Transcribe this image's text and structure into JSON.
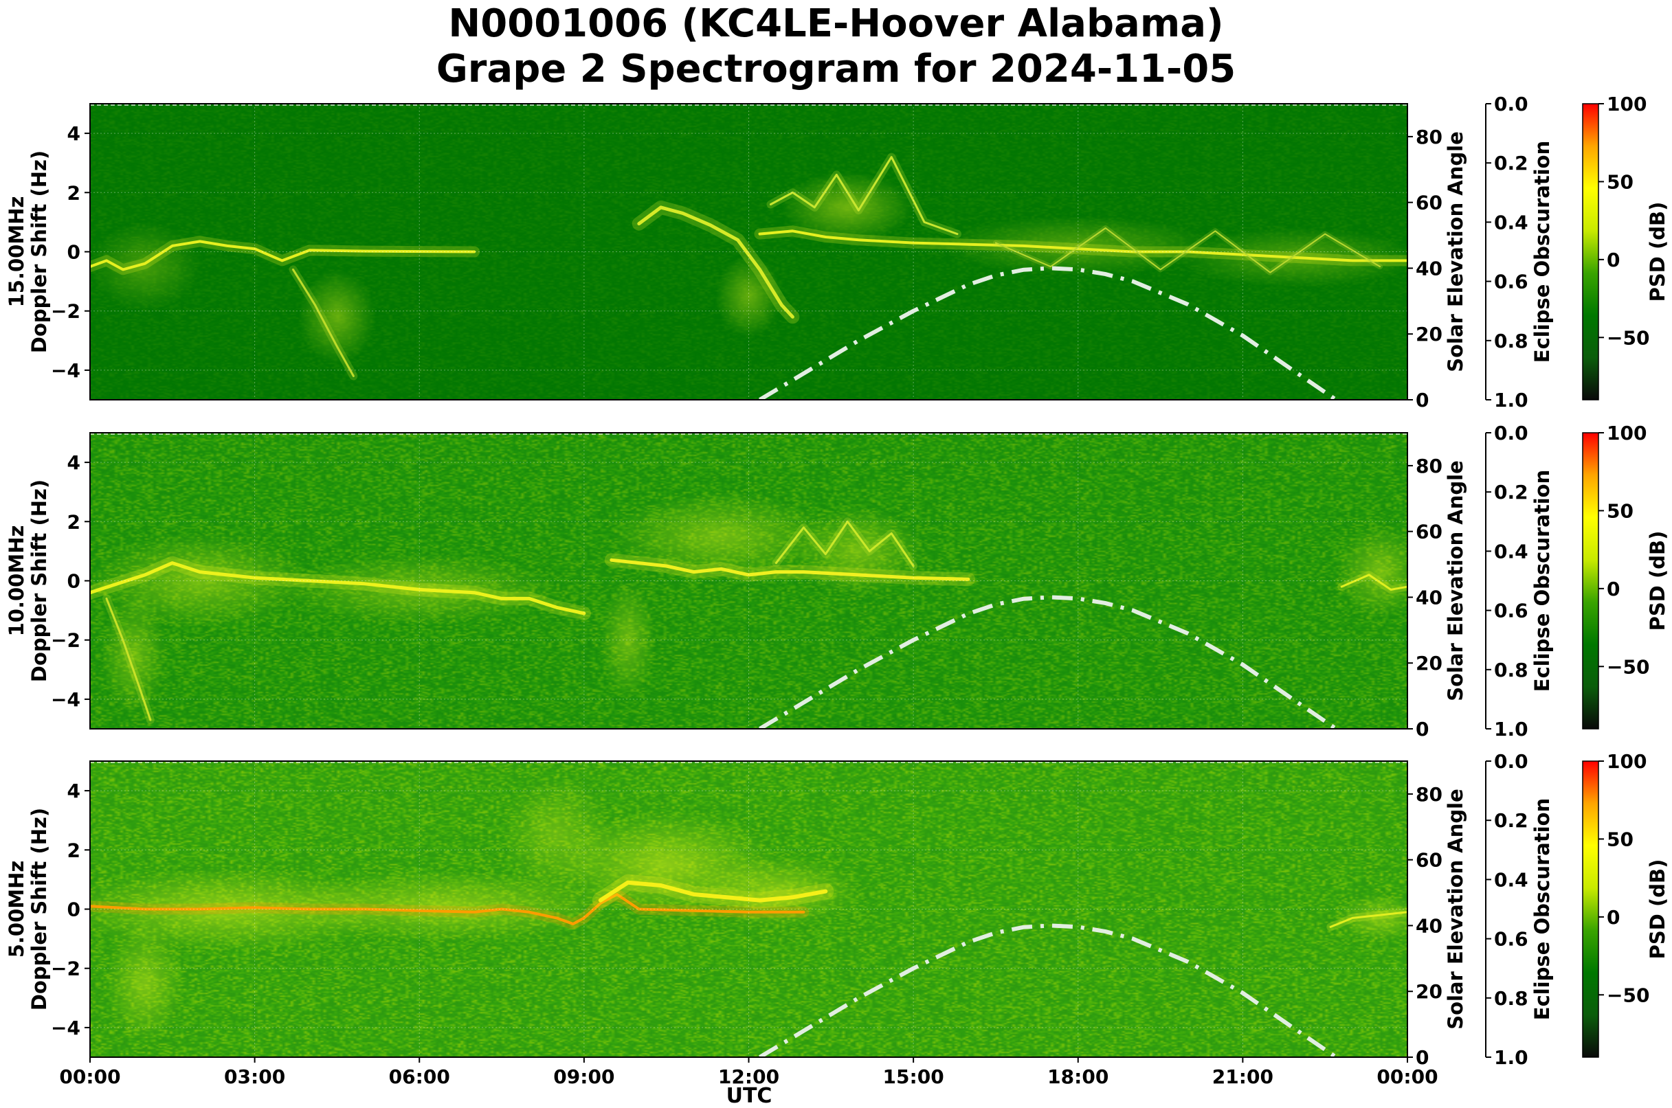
{
  "figure": {
    "title_line1": "N0001006 (KC4LE-Hoover Alabama)",
    "title_line2": "Grape 2 Spectrogram for 2024-11-05",
    "xlabel": "UTC"
  },
  "chart_data": {
    "type": "heatmap",
    "x_ticks": [
      "00:00",
      "03:00",
      "06:00",
      "09:00",
      "12:00",
      "15:00",
      "18:00",
      "21:00",
      "00:00"
    ],
    "xlim_hours": [
      0,
      24
    ],
    "ylabel_suffix": "Doppler Shift (Hz)",
    "ylim": [
      -5,
      5
    ],
    "y_ticks": [
      4,
      2,
      0,
      -2,
      -4
    ],
    "y_tick_labels": [
      "4",
      "2",
      "0",
      "−2",
      "−4"
    ],
    "right_axis_label": "Solar Elevation Angle",
    "right_ylim": [
      0,
      90
    ],
    "right_ticks": [
      0,
      20,
      40,
      60,
      80
    ],
    "eclipse_label": "Eclipse Obscuration",
    "eclipse_ylim": [
      1.0,
      0.0
    ],
    "eclipse_ticks": [
      "0.0",
      "0.2",
      "0.4",
      "0.6",
      "0.8",
      "1.0"
    ],
    "colorbar_label": "PSD (dB)",
    "colorbar_ticks": [
      "100",
      "50",
      "0",
      "−50"
    ],
    "colorbar_range": [
      -90,
      100
    ],
    "colormap": [
      "#0a0a0a",
      "#0b5d0b",
      "#007800",
      "#3aa400",
      "#c8ea00",
      "#ffff00",
      "#ffa500",
      "#ff0000"
    ],
    "solar_elevation_curve": {
      "style": "dash-dot",
      "color": "#e2eee2",
      "points": [
        [
          12.2,
          0
        ],
        [
          13.0,
          8
        ],
        [
          14.0,
          18
        ],
        [
          15.0,
          27
        ],
        [
          16.0,
          35
        ],
        [
          16.5,
          37.8
        ],
        [
          17.0,
          39.5
        ],
        [
          17.5,
          40
        ],
        [
          18.0,
          39.6
        ],
        [
          18.5,
          38.2
        ],
        [
          19.0,
          36
        ],
        [
          20.0,
          29
        ],
        [
          21.0,
          19.5
        ],
        [
          22.0,
          8
        ],
        [
          22.7,
          0
        ]
      ]
    },
    "panels": [
      {
        "frequency": "15.00MHz",
        "background": "#037603",
        "noise": 0.1,
        "traces": [
          {
            "color": "#e6f020",
            "width": 4,
            "points": [
              [
                0,
                -0.5
              ],
              [
                0.3,
                -0.3
              ],
              [
                0.6,
                -0.6
              ],
              [
                1,
                -0.4
              ],
              [
                1.5,
                0.2
              ],
              [
                2,
                0.35
              ],
              [
                2.5,
                0.2
              ],
              [
                3,
                0.1
              ],
              [
                3.5,
                -0.3
              ],
              [
                4,
                0.05
              ],
              [
                5,
                0.02
              ],
              [
                7,
                0
              ]
            ]
          },
          {
            "color": "#d6ea28",
            "width": 5,
            "points": [
              [
                10,
                0.95
              ],
              [
                10.4,
                1.5
              ],
              [
                10.8,
                1.3
              ],
              [
                11.3,
                0.9
              ],
              [
                11.8,
                0.4
              ],
              [
                12.2,
                -0.6
              ],
              [
                12.6,
                -1.8
              ],
              [
                12.8,
                -2.2
              ]
            ]
          },
          {
            "color": "#e6f020",
            "width": 4,
            "points": [
              [
                12.2,
                0.6
              ],
              [
                12.8,
                0.7
              ],
              [
                13.4,
                0.5
              ],
              [
                14,
                0.4
              ],
              [
                15,
                0.3
              ],
              [
                16,
                0.25
              ],
              [
                17,
                0.2
              ],
              [
                18,
                0.1
              ],
              [
                19,
                0.0
              ],
              [
                20,
                0.0
              ],
              [
                21,
                -0.1
              ],
              [
                22,
                -0.2
              ],
              [
                23,
                -0.3
              ],
              [
                24,
                -0.3
              ]
            ]
          },
          {
            "color": "#c8e630",
            "width": 3,
            "points": [
              [
                12.4,
                1.6
              ],
              [
                12.8,
                2.0
              ],
              [
                13.2,
                1.5
              ],
              [
                13.6,
                2.6
              ],
              [
                14.0,
                1.4
              ],
              [
                14.6,
                3.2
              ],
              [
                15.2,
                1.0
              ],
              [
                15.8,
                0.6
              ]
            ]
          },
          {
            "color": "#bddc2a",
            "width": 3,
            "points": [
              [
                3.7,
                -0.6
              ],
              [
                4.1,
                -1.8
              ],
              [
                4.5,
                -3.2
              ],
              [
                4.8,
                -4.2
              ]
            ]
          },
          {
            "color": "#b8d830",
            "width": 2,
            "points": [
              [
                16.5,
                0.3
              ],
              [
                17.5,
                -0.5
              ],
              [
                18.5,
                0.8
              ],
              [
                19.5,
                -0.6
              ],
              [
                20.5,
                0.7
              ],
              [
                21.5,
                -0.7
              ],
              [
                22.5,
                0.6
              ],
              [
                23.5,
                -0.5
              ]
            ]
          }
        ],
        "glows": [
          {
            "h": 4.5,
            "f": -2.2,
            "rh": 0.7,
            "rf": 1.6,
            "intensity": 0.45
          },
          {
            "h": 12.0,
            "f": -1.5,
            "rh": 0.6,
            "rf": 1.4,
            "intensity": 0.45
          },
          {
            "h": 13.8,
            "f": 1.5,
            "rh": 1.2,
            "rf": 1.2,
            "intensity": 0.5
          },
          {
            "h": 18.0,
            "f": 0.2,
            "rh": 2.5,
            "rf": 1.0,
            "intensity": 0.35
          },
          {
            "h": 22.0,
            "f": -0.2,
            "rh": 2.2,
            "rf": 1.0,
            "intensity": 0.35
          },
          {
            "h": 1.0,
            "f": -0.5,
            "rh": 1.0,
            "rf": 1.5,
            "intensity": 0.3
          }
        ]
      },
      {
        "frequency": "10.00MHz",
        "background": "#1a8d0c",
        "noise": 0.4,
        "traces": [
          {
            "color": "#ecf21c",
            "width": 5,
            "points": [
              [
                0,
                -0.4
              ],
              [
                0.5,
                -0.1
              ],
              [
                1,
                0.2
              ],
              [
                1.5,
                0.6
              ],
              [
                2,
                0.3
              ],
              [
                2.5,
                0.2
              ],
              [
                3,
                0.1
              ],
              [
                4,
                0.0
              ],
              [
                5,
                -0.1
              ],
              [
                6,
                -0.3
              ],
              [
                7,
                -0.4
              ],
              [
                7.5,
                -0.6
              ],
              [
                8,
                -0.6
              ],
              [
                8.5,
                -0.9
              ],
              [
                9,
                -1.1
              ]
            ]
          },
          {
            "color": "#f0f020",
            "width": 5,
            "points": [
              [
                9.5,
                0.7
              ],
              [
                10,
                0.6
              ],
              [
                10.5,
                0.5
              ],
              [
                11,
                0.3
              ],
              [
                11.5,
                0.4
              ],
              [
                12,
                0.2
              ],
              [
                12.5,
                0.3
              ],
              [
                13,
                0.3
              ],
              [
                14,
                0.2
              ],
              [
                15,
                0.1
              ],
              [
                16,
                0.05
              ]
            ]
          },
          {
            "color": "#cbe82a",
            "width": 3,
            "points": [
              [
                12.5,
                0.6
              ],
              [
                13,
                1.8
              ],
              [
                13.4,
                0.9
              ],
              [
                13.8,
                2.0
              ],
              [
                14.2,
                1.0
              ],
              [
                14.6,
                1.6
              ],
              [
                15,
                0.5
              ]
            ]
          },
          {
            "color": "#c8e228",
            "width": 3,
            "points": [
              [
                0.3,
                -0.6
              ],
              [
                0.6,
                -2.0
              ],
              [
                0.9,
                -3.6
              ],
              [
                1.1,
                -4.7
              ]
            ]
          },
          {
            "color": "#e0ef20",
            "width": 3,
            "points": [
              [
                22.8,
                -0.2
              ],
              [
                23.3,
                0.2
              ],
              [
                23.7,
                -0.3
              ],
              [
                24,
                -0.2
              ]
            ]
          }
        ],
        "glows": [
          {
            "h": 2.0,
            "f": 0.0,
            "rh": 2.0,
            "rf": 1.6,
            "intensity": 0.45
          },
          {
            "h": 6.0,
            "f": -0.3,
            "rh": 2.5,
            "rf": 1.2,
            "intensity": 0.4
          },
          {
            "h": 0.8,
            "f": -2.5,
            "rh": 0.6,
            "rf": 2.0,
            "intensity": 0.4
          },
          {
            "h": 9.8,
            "f": -2.0,
            "rh": 0.5,
            "rf": 2.0,
            "intensity": 0.4
          },
          {
            "h": 11.5,
            "f": 1.5,
            "rh": 2.0,
            "rf": 1.5,
            "intensity": 0.45
          },
          {
            "h": 14.0,
            "f": 1.0,
            "rh": 1.2,
            "rf": 1.5,
            "intensity": 0.45
          },
          {
            "h": 23.5,
            "f": 0.3,
            "rh": 0.8,
            "rf": 1.6,
            "intensity": 0.45
          }
        ]
      },
      {
        "frequency": "5.00MHz",
        "background": "#2e9a10",
        "noise": 0.5,
        "traces": [
          {
            "color": "#ff9e00",
            "width": 4,
            "points": [
              [
                0,
                0.1
              ],
              [
                1,
                0.0
              ],
              [
                2,
                0.0
              ],
              [
                3,
                0.05
              ],
              [
                4,
                0.0
              ],
              [
                5,
                0.0
              ],
              [
                6,
                -0.05
              ],
              [
                7,
                -0.1
              ],
              [
                7.5,
                0.0
              ],
              [
                8,
                -0.1
              ],
              [
                8.5,
                -0.3
              ],
              [
                8.8,
                -0.5
              ],
              [
                9.0,
                -0.3
              ],
              [
                9.3,
                0.2
              ],
              [
                9.6,
                0.5
              ],
              [
                10,
                0.0
              ],
              [
                11,
                -0.05
              ],
              [
                12,
                -0.1
              ],
              [
                13,
                -0.1
              ]
            ]
          },
          {
            "color": "#f5f018",
            "width": 6,
            "points": [
              [
                9.3,
                0.3
              ],
              [
                9.8,
                0.9
              ],
              [
                10.4,
                0.8
              ],
              [
                11,
                0.5
              ],
              [
                11.6,
                0.4
              ],
              [
                12.2,
                0.3
              ],
              [
                12.8,
                0.4
              ],
              [
                13.4,
                0.6
              ]
            ]
          },
          {
            "color": "#e2ef20",
            "width": 3,
            "points": [
              [
                22.6,
                -0.6
              ],
              [
                23.0,
                -0.3
              ],
              [
                23.5,
                -0.2
              ],
              [
                24,
                -0.1
              ]
            ]
          }
        ],
        "glows": [
          {
            "h": 2.5,
            "f": 0.0,
            "rh": 3.0,
            "rf": 1.4,
            "intensity": 0.55
          },
          {
            "h": 6.5,
            "f": 0.1,
            "rh": 3.0,
            "rf": 1.2,
            "intensity": 0.5
          },
          {
            "h": 1.0,
            "f": -2.5,
            "rh": 0.7,
            "rf": 2.0,
            "intensity": 0.45
          },
          {
            "h": 10.5,
            "f": 1.5,
            "rh": 2.0,
            "rf": 1.8,
            "intensity": 0.55
          },
          {
            "h": 12.5,
            "f": 0.6,
            "rh": 1.5,
            "rf": 1.2,
            "intensity": 0.5
          },
          {
            "h": 8.5,
            "f": 2.5,
            "rh": 1.0,
            "rf": 2.0,
            "intensity": 0.35
          },
          {
            "h": 23.5,
            "f": -0.3,
            "rh": 0.8,
            "rf": 0.8,
            "intensity": 0.45
          }
        ]
      }
    ]
  }
}
